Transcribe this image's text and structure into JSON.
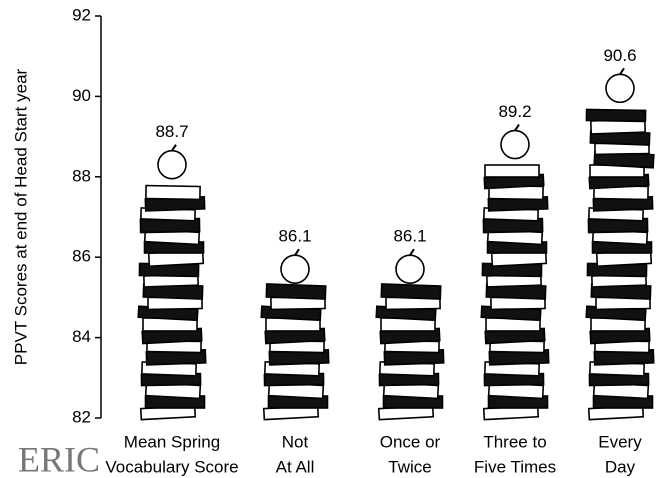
{
  "chart_data": {
    "type": "bar",
    "y_label": "PPVT Scores at end of Head Start year",
    "categories": [
      [
        "Mean Spring",
        "Vocabulary Score"
      ],
      [
        "Not",
        "At All"
      ],
      [
        "Once or",
        "Twice"
      ],
      [
        "Three to",
        "Five Times"
      ],
      [
        "Every",
        "Day"
      ]
    ],
    "values": [
      88.7,
      86.1,
      86.1,
      89.2,
      90.6
    ],
    "ylim": [
      82,
      92
    ],
    "yticks": [
      82,
      84,
      86,
      88,
      90,
      92
    ],
    "watermark": "ERIC"
  }
}
